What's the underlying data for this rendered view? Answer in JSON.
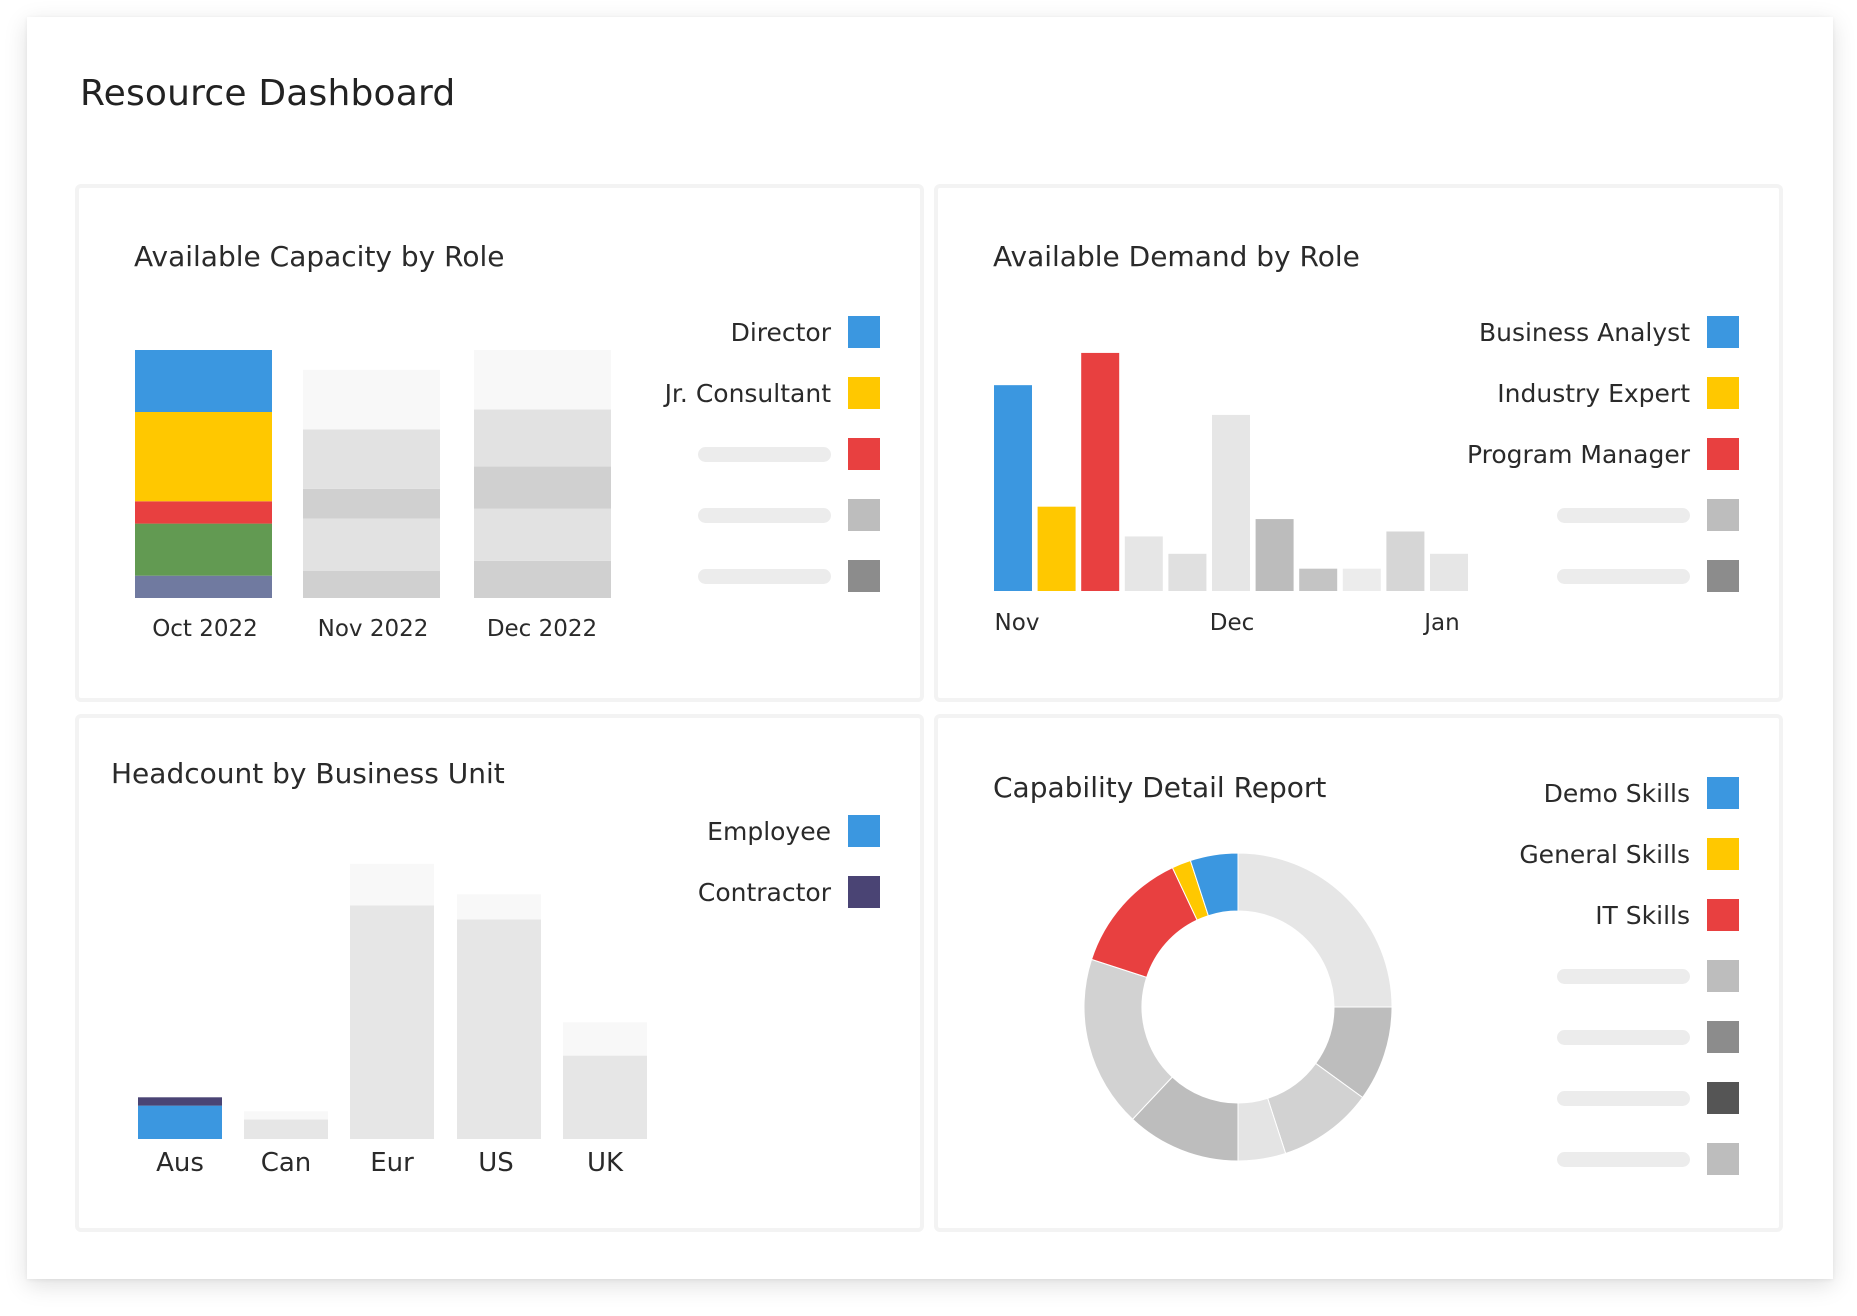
{
  "page": {
    "title": "Resource Dashboard"
  },
  "capacity": {
    "title": "Available Capacity by Role",
    "legend": [
      {
        "label": "Director",
        "color": "#3b97e0"
      },
      {
        "label": "Jr. Consultant",
        "color": "#ffc800"
      },
      {
        "label": "",
        "color": "#e84040"
      },
      {
        "label": "",
        "color": "#bdbdbd"
      },
      {
        "label": "",
        "color": "#8c8c8c"
      }
    ]
  },
  "demand": {
    "title": "Available Demand by Role",
    "legend": [
      {
        "label": "Business Analyst",
        "color": "#3b97e0"
      },
      {
        "label": "Industry Expert",
        "color": "#ffc800"
      },
      {
        "label": "Program Manager",
        "color": "#e84040"
      },
      {
        "label": "",
        "color": "#bdbdbd"
      },
      {
        "label": "",
        "color": "#8c8c8c"
      }
    ]
  },
  "headcount": {
    "title": "Headcount by Business Unit",
    "legend": [
      {
        "label": "Employee",
        "color": "#3b97e0"
      },
      {
        "label": "Contractor",
        "color": "#4a4474"
      }
    ]
  },
  "capability": {
    "title": "Capability Detail Report",
    "legend": [
      {
        "label": "Demo Skills",
        "color": "#3b97e0"
      },
      {
        "label": "General Skills",
        "color": "#ffc800"
      },
      {
        "label": "IT Skills",
        "color": "#e84040"
      },
      {
        "label": "",
        "color": "#bdbdbd"
      },
      {
        "label": "",
        "color": "#8c8c8c"
      },
      {
        "label": "",
        "color": "#555555"
      },
      {
        "label": "",
        "color": "#bdbdbd"
      }
    ]
  },
  "chart_data": [
    {
      "type": "bar",
      "stacked": true,
      "title": "Available Capacity by Role",
      "categories": [
        "Oct 2022",
        "Nov 2022",
        "Dec 2022"
      ],
      "series": [
        {
          "name": "",
          "color": "#707aa0",
          "values": [
            9,
            0,
            0
          ]
        },
        {
          "name": "",
          "color": "#629a52",
          "values": [
            21,
            0,
            0
          ]
        },
        {
          "name": "",
          "color": "#e84040",
          "values": [
            9,
            0,
            0
          ]
        },
        {
          "name": "Jr. Consultant",
          "color": "#ffc800",
          "values": [
            36,
            0,
            0
          ]
        },
        {
          "name": "Director",
          "color": "#3b97e0",
          "values": [
            25,
            0,
            0
          ]
        },
        {
          "name": "",
          "color": "#d0d0d0",
          "values": [
            0,
            11,
            15
          ]
        },
        {
          "name": "",
          "color": "#e2e2e2",
          "values": [
            0,
            21,
            21
          ]
        },
        {
          "name": "",
          "color": "#d0d0d0",
          "values": [
            0,
            12,
            17
          ]
        },
        {
          "name": "",
          "color": "#e2e2e2",
          "values": [
            0,
            24,
            23
          ]
        },
        {
          "name": "",
          "color": "#f8f8f8",
          "values": [
            0,
            24,
            24
          ]
        }
      ]
    },
    {
      "type": "bar",
      "title": "Available Demand by Role",
      "x_ticks": [
        "Nov",
        "Dec",
        "Jan"
      ],
      "values": [
        83,
        34,
        96,
        22,
        15,
        71,
        29,
        9,
        9,
        24,
        15
      ],
      "colors": [
        "#3b97e0",
        "#ffc800",
        "#e84040",
        "#e6e6e6",
        "#e0e0e0",
        "#e6e6e6",
        "#bcbcbc",
        "#c4c4c4",
        "#ececec",
        "#d6d6d6",
        "#e6e6e6"
      ],
      "ylim": [
        0,
        100
      ]
    },
    {
      "type": "bar",
      "stacked": true,
      "title": "Headcount by Business Unit",
      "categories": [
        "Aus",
        "Can",
        "Eur",
        "US",
        "UK"
      ],
      "series": [
        {
          "name": "Employee",
          "color": "#3b97e0",
          "values": [
            12,
            0,
            0,
            0,
            0
          ]
        },
        {
          "name": "Contractor",
          "color": "#4a4474",
          "values": [
            3,
            0,
            0,
            0,
            0
          ]
        },
        {
          "name": "",
          "color": "#e6e6e6",
          "values": [
            0,
            7,
            84,
            79,
            30
          ]
        },
        {
          "name": "",
          "color": "#f8f8f8",
          "values": [
            0,
            3,
            15,
            9,
            12
          ]
        }
      ],
      "ylim": [
        0,
        100
      ]
    },
    {
      "type": "pie",
      "donut": true,
      "title": "Capability Detail Report",
      "slices": [
        {
          "label": "",
          "value": 25,
          "color": "#e6e6e6"
        },
        {
          "label": "",
          "value": 10,
          "color": "#bdbdbd"
        },
        {
          "label": "",
          "value": 10,
          "color": "#d2d2d2"
        },
        {
          "label": "",
          "value": 5,
          "color": "#e4e4e4"
        },
        {
          "label": "",
          "value": 12,
          "color": "#bdbdbd"
        },
        {
          "label": "",
          "value": 18,
          "color": "#d2d2d2"
        },
        {
          "label": "IT Skills",
          "value": 13,
          "color": "#e84040"
        },
        {
          "label": "General Skills",
          "value": 2,
          "color": "#ffc800"
        },
        {
          "label": "Demo Skills",
          "value": 5,
          "color": "#3b97e0"
        }
      ]
    }
  ]
}
